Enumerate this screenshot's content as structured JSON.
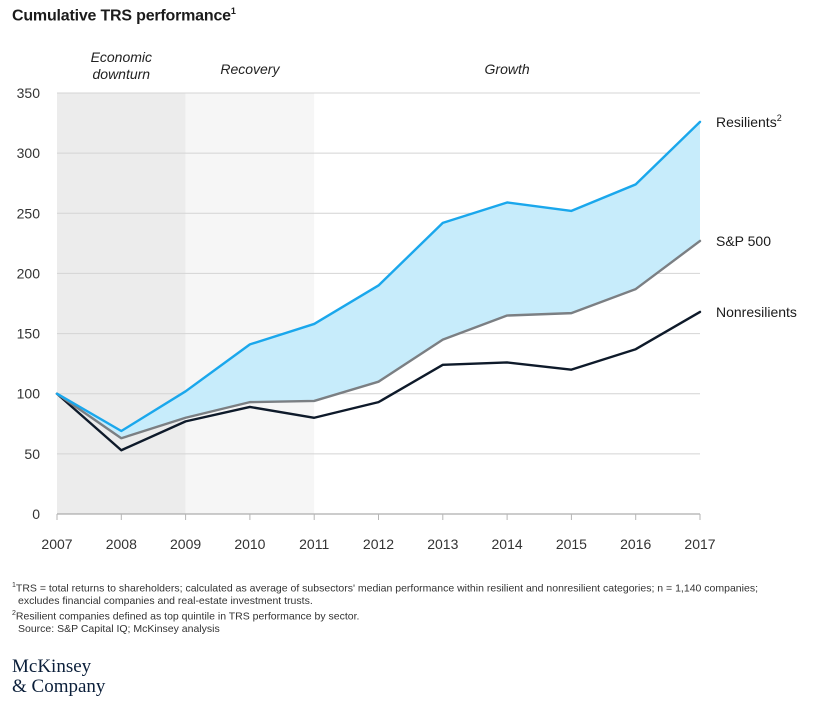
{
  "title": "Cumulative TRS performance",
  "title_note": "1",
  "chart_data": {
    "type": "line",
    "x": [
      2007,
      2008,
      2009,
      2010,
      2011,
      2012,
      2013,
      2014,
      2015,
      2016,
      2017
    ],
    "ylim": [
      0,
      350
    ],
    "yticks": [
      0,
      50,
      100,
      150,
      200,
      250,
      300,
      350
    ],
    "grid": true,
    "phases": [
      {
        "label_lines": [
          "Economic",
          "downturn"
        ],
        "from": 2007,
        "to": 2009,
        "color": "#ececec"
      },
      {
        "label_lines": [
          "Recovery"
        ],
        "from": 2009,
        "to": 2011,
        "color": "#f6f6f6"
      },
      {
        "label_lines": [
          "Growth"
        ],
        "from": 2011,
        "to": 2017,
        "color": "#ffffff"
      }
    ],
    "series": [
      {
        "name": "Resilients",
        "note": "2",
        "color": "#1aa7ec",
        "values": [
          100,
          69,
          102,
          141,
          158,
          190,
          242,
          259,
          252,
          274,
          326
        ]
      },
      {
        "name": "S&P 500",
        "note": "",
        "color": "#7b7f83",
        "values": [
          100,
          63,
          80,
          93,
          94,
          110,
          145,
          165,
          167,
          187,
          227
        ]
      },
      {
        "name": "Nonresilients",
        "note": "",
        "color": "#0e1a2a",
        "values": [
          100,
          53,
          77,
          89,
          80,
          93,
          124,
          126,
          120,
          137,
          168
        ]
      }
    ],
    "band": {
      "between": [
        "Resilients",
        "S&P 500"
      ],
      "color": "#c7ecfb"
    }
  },
  "footnotes": [
    {
      "mark": "1",
      "lines": [
        "TRS = total returns to shareholders; calculated as average of subsectors' median performance within resilient and nonresilient categories; n = 1,140 companies;",
        "excludes financial companies and real-estate investment trusts."
      ]
    },
    {
      "mark": "2",
      "lines": [
        "Resilient companies defined as top quintile in TRS performance by sector."
      ]
    }
  ],
  "source": "Source: S&P Capital IQ; McKinsey analysis",
  "logo": {
    "line1": "McKinsey",
    "line2": "& Company"
  }
}
